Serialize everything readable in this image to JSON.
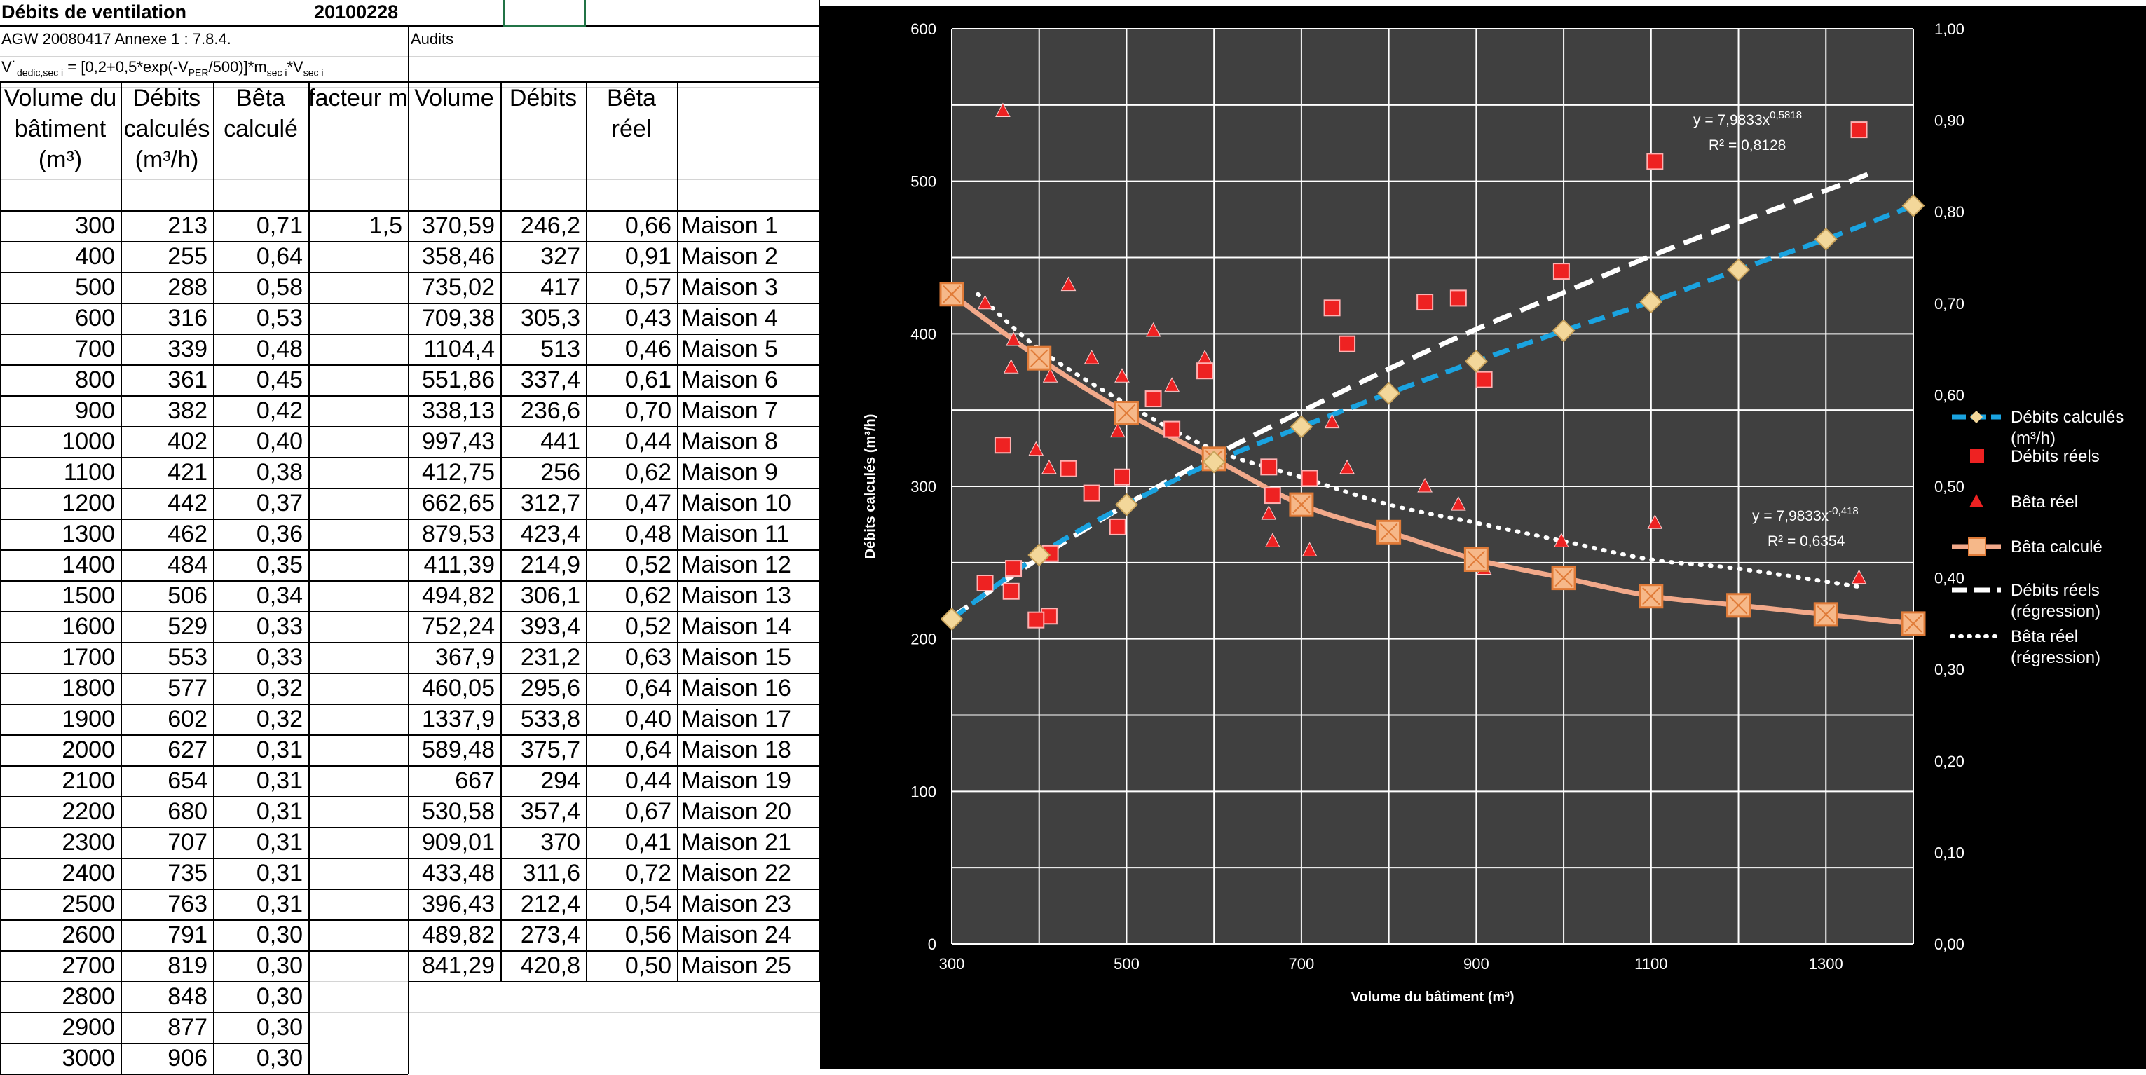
{
  "sheet": {
    "title": "Débits de ventilation",
    "date": "20100228",
    "ref": "AGW 20080417 Annexe 1 : 7.8.4.",
    "audits": "Audits",
    "formula_html": "V˙<sub>dedic,sec i</sub> = [0,2+0,5*exp(-V<sub>PER</sub>/500)]*m<sub>sec i</sub>*V<sub>sec i</sub>",
    "headers": [
      "Volume du bâtiment (m³)",
      "Débits calculés (m³/h)",
      "Bêta calculé",
      "facteur m",
      "Volume",
      "Débits",
      "Bêta réel"
    ],
    "facteur_m": "1,5",
    "calc": [
      [
        "300",
        "213",
        "0,71"
      ],
      [
        "400",
        "255",
        "0,64"
      ],
      [
        "500",
        "288",
        "0,58"
      ],
      [
        "600",
        "316",
        "0,53"
      ],
      [
        "700",
        "339",
        "0,48"
      ],
      [
        "800",
        "361",
        "0,45"
      ],
      [
        "900",
        "382",
        "0,42"
      ],
      [
        "1000",
        "402",
        "0,40"
      ],
      [
        "1100",
        "421",
        "0,38"
      ],
      [
        "1200",
        "442",
        "0,37"
      ],
      [
        "1300",
        "462",
        "0,36"
      ],
      [
        "1400",
        "484",
        "0,35"
      ],
      [
        "1500",
        "506",
        "0,34"
      ],
      [
        "1600",
        "529",
        "0,33"
      ],
      [
        "1700",
        "553",
        "0,33"
      ],
      [
        "1800",
        "577",
        "0,32"
      ],
      [
        "1900",
        "602",
        "0,32"
      ],
      [
        "2000",
        "627",
        "0,31"
      ],
      [
        "2100",
        "654",
        "0,31"
      ],
      [
        "2200",
        "680",
        "0,31"
      ],
      [
        "2300",
        "707",
        "0,31"
      ],
      [
        "2400",
        "735",
        "0,31"
      ],
      [
        "2500",
        "763",
        "0,31"
      ],
      [
        "2600",
        "791",
        "0,30"
      ],
      [
        "2700",
        "819",
        "0,30"
      ],
      [
        "2800",
        "848",
        "0,30"
      ],
      [
        "2900",
        "877",
        "0,30"
      ],
      [
        "3000",
        "906",
        "0,30"
      ]
    ],
    "audit_rows": [
      [
        "370,59",
        "246,2",
        "0,66",
        "Maison 1"
      ],
      [
        "358,46",
        "327",
        "0,91",
        "Maison 2"
      ],
      [
        "735,02",
        "417",
        "0,57",
        "Maison 3"
      ],
      [
        "709,38",
        "305,3",
        "0,43",
        "Maison 4"
      ],
      [
        "1104,4",
        "513",
        "0,46",
        "Maison 5"
      ],
      [
        "551,86",
        "337,4",
        "0,61",
        "Maison 6"
      ],
      [
        "338,13",
        "236,6",
        "0,70",
        "Maison 7"
      ],
      [
        "997,43",
        "441",
        "0,44",
        "Maison 8"
      ],
      [
        "412,75",
        "256",
        "0,62",
        "Maison 9"
      ],
      [
        "662,65",
        "312,7",
        "0,47",
        "Maison 10"
      ],
      [
        "879,53",
        "423,4",
        "0,48",
        "Maison 11"
      ],
      [
        "411,39",
        "214,9",
        "0,52",
        "Maison 12"
      ],
      [
        "494,82",
        "306,1",
        "0,62",
        "Maison 13"
      ],
      [
        "752,24",
        "393,4",
        "0,52",
        "Maison 14"
      ],
      [
        "367,9",
        "231,2",
        "0,63",
        "Maison 15"
      ],
      [
        "460,05",
        "295,6",
        "0,64",
        "Maison 16"
      ],
      [
        "1337,9",
        "533,8",
        "0,40",
        "Maison 17"
      ],
      [
        "589,48",
        "375,7",
        "0,64",
        "Maison 18"
      ],
      [
        "667",
        "294",
        "0,44",
        "Maison 19"
      ],
      [
        "530,58",
        "357,4",
        "0,67",
        "Maison 20"
      ],
      [
        "909,01",
        "370",
        "0,41",
        "Maison 21"
      ],
      [
        "433,48",
        "311,6",
        "0,72",
        "Maison 22"
      ],
      [
        "396,43",
        "212,4",
        "0,54",
        "Maison 23"
      ],
      [
        "489,82",
        "273,4",
        "0,56",
        "Maison 24"
      ],
      [
        "841,29",
        "420,8",
        "0,50",
        "Maison 25"
      ]
    ]
  },
  "chart_data": {
    "type": "scatter",
    "xlabel": "Volume du bâtiment (m³)",
    "ylabel": "Débits calculés (m³/h)",
    "xlim": [
      300,
      1400
    ],
    "ylim": [
      0,
      600
    ],
    "y2lim": [
      0,
      1.0
    ],
    "x_ticks": [
      "300",
      "500",
      "700",
      "900",
      "1100",
      "1300"
    ],
    "y_ticks": [
      "0",
      "100",
      "200",
      "300",
      "400",
      "500",
      "600"
    ],
    "y2_ticks": [
      "0,00",
      "0,10",
      "0,20",
      "0,30",
      "0,40",
      "0,50",
      "0,60",
      "0,70",
      "0,80",
      "0,90",
      "1,00"
    ],
    "grid": true,
    "legend_position": "right",
    "colors": {
      "debits_calc": "#1aa3e0",
      "debits_reels": "#ee2222",
      "beta_reel": "#ee2222",
      "beta_calc": "#f2a98a",
      "regression": "#ffffff",
      "plot_bg": "#404040",
      "marker_tan": "#f3d79a"
    },
    "series": [
      {
        "name": "Débits calculés (m³/h)",
        "axis": "left",
        "style": "dashed-line-diamond",
        "x": [
          300,
          400,
          500,
          600,
          700,
          800,
          900,
          1000,
          1100,
          1200,
          1300,
          1400
        ],
        "y": [
          213,
          255,
          288,
          316,
          339,
          361,
          382,
          402,
          421,
          442,
          462,
          484
        ]
      },
      {
        "name": "Débits réels",
        "axis": "left",
        "style": "square",
        "x": [
          370.59,
          358.46,
          735.02,
          709.38,
          1104.4,
          551.86,
          338.13,
          997.43,
          412.75,
          662.65,
          879.53,
          411.39,
          494.82,
          752.24,
          367.9,
          460.05,
          1337.9,
          589.48,
          667,
          530.58,
          909.01,
          433.48,
          396.43,
          489.82,
          841.29
        ],
        "y": [
          246.2,
          327,
          417,
          305.3,
          513,
          337.4,
          236.6,
          441,
          256,
          312.7,
          423.4,
          214.9,
          306.1,
          393.4,
          231.2,
          295.6,
          533.8,
          375.7,
          294,
          357.4,
          370,
          311.6,
          212.4,
          273.4,
          420.8
        ]
      },
      {
        "name": "Bêta réel",
        "axis": "right",
        "style": "triangle",
        "x": [
          370.59,
          358.46,
          735.02,
          709.38,
          1104.4,
          551.86,
          338.13,
          997.43,
          412.75,
          662.65,
          879.53,
          411.39,
          494.82,
          752.24,
          367.9,
          460.05,
          1337.9,
          589.48,
          667,
          530.58,
          909.01,
          433.48,
          396.43,
          489.82,
          841.29
        ],
        "y": [
          0.66,
          0.91,
          0.57,
          0.43,
          0.46,
          0.61,
          0.7,
          0.44,
          0.62,
          0.47,
          0.48,
          0.52,
          0.62,
          0.52,
          0.63,
          0.64,
          0.4,
          0.64,
          0.44,
          0.67,
          0.41,
          0.72,
          0.54,
          0.56,
          0.5
        ]
      },
      {
        "name": "Bêta calculé",
        "axis": "right",
        "style": "smooth-line-square",
        "x": [
          300,
          400,
          500,
          600,
          700,
          800,
          900,
          1000,
          1100,
          1200,
          1300,
          1400
        ],
        "y": [
          0.71,
          0.64,
          0.58,
          0.53,
          0.48,
          0.45,
          0.42,
          0.4,
          0.38,
          0.37,
          0.36,
          0.35
        ]
      },
      {
        "name": "Débits réels (régression)",
        "axis": "left",
        "style": "white-dashed",
        "x": [
          300,
          400,
          500,
          600,
          700,
          800,
          900,
          1000,
          1100,
          1200,
          1300,
          1350
        ],
        "y": [
          214,
          253,
          288,
          320,
          349,
          377,
          403,
          427,
          451,
          473,
          494,
          505
        ]
      },
      {
        "name": "Bêta réel (régression)",
        "axis": "right",
        "style": "white-dotted",
        "x": [
          330,
          400,
          500,
          600,
          700,
          800,
          900,
          1000,
          1100,
          1200,
          1340
        ],
        "y": [
          0.71,
          0.65,
          0.59,
          0.54,
          0.51,
          0.48,
          0.46,
          0.44,
          0.42,
          0.41,
          0.39
        ]
      }
    ],
    "annotations": [
      {
        "text": "y = 7,9833x",
        "sup": "0,5818",
        "r2": "R² = 0,8128"
      },
      {
        "text": "y = 7,9833x",
        "sup": "-0,418",
        "r2": "R² = 0,6354"
      }
    ]
  }
}
